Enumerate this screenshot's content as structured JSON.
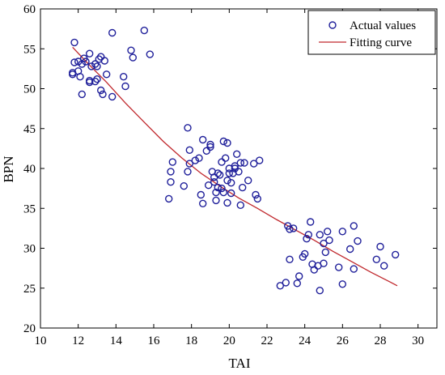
{
  "chart_data": {
    "type": "scatter",
    "xlabel": "TAI",
    "ylabel": "BPN",
    "xlim": [
      10,
      31
    ],
    "ylim": [
      20,
      60
    ],
    "xticks": [
      10,
      12,
      14,
      16,
      18,
      20,
      22,
      24,
      26,
      28,
      30
    ],
    "yticks": [
      20,
      25,
      30,
      35,
      40,
      45,
      50,
      55,
      60
    ],
    "grid": false,
    "legend_position": "top-right",
    "colors": {
      "points": "#1f1f9a",
      "curve": "#c0282d",
      "axis": "#000000"
    },
    "series": [
      {
        "name": "Actual values",
        "kind": "scatter",
        "points": [
          [
            11.7,
            52.0
          ],
          [
            11.7,
            51.8
          ],
          [
            11.8,
            55.8
          ],
          [
            11.8,
            53.3
          ],
          [
            12.0,
            53.4
          ],
          [
            12.0,
            52.2
          ],
          [
            12.1,
            51.5
          ],
          [
            12.2,
            53.1
          ],
          [
            12.2,
            49.3
          ],
          [
            12.3,
            53.8
          ],
          [
            12.4,
            53.4
          ],
          [
            12.6,
            54.4
          ],
          [
            12.6,
            51.0
          ],
          [
            12.6,
            50.8
          ],
          [
            12.7,
            52.8
          ],
          [
            12.9,
            53.1
          ],
          [
            12.9,
            50.9
          ],
          [
            13.0,
            51.2
          ],
          [
            13.0,
            52.8
          ],
          [
            13.1,
            53.7
          ],
          [
            13.2,
            49.8
          ],
          [
            13.2,
            54.0
          ],
          [
            13.3,
            49.3
          ],
          [
            13.4,
            53.5
          ],
          [
            13.5,
            51.8
          ],
          [
            13.8,
            57.0
          ],
          [
            13.8,
            49.0
          ],
          [
            14.4,
            51.5
          ],
          [
            14.5,
            50.3
          ],
          [
            14.8,
            54.8
          ],
          [
            14.9,
            53.9
          ],
          [
            15.5,
            57.3
          ],
          [
            15.8,
            54.3
          ],
          [
            16.8,
            36.2
          ],
          [
            16.9,
            39.6
          ],
          [
            16.9,
            38.3
          ],
          [
            17.0,
            40.8
          ],
          [
            17.6,
            37.8
          ],
          [
            17.8,
            45.1
          ],
          [
            17.8,
            39.6
          ],
          [
            17.9,
            42.3
          ],
          [
            17.9,
            40.6
          ],
          [
            18.2,
            41.0
          ],
          [
            18.4,
            41.3
          ],
          [
            18.5,
            36.7
          ],
          [
            18.6,
            35.6
          ],
          [
            18.6,
            43.6
          ],
          [
            18.8,
            42.2
          ],
          [
            18.9,
            37.9
          ],
          [
            19.0,
            42.7
          ],
          [
            19.0,
            43.0
          ],
          [
            19.1,
            39.6
          ],
          [
            19.2,
            38.3
          ],
          [
            19.2,
            38.9
          ],
          [
            19.3,
            36.0
          ],
          [
            19.3,
            37.0
          ],
          [
            19.4,
            39.4
          ],
          [
            19.4,
            37.6
          ],
          [
            19.5,
            39.2
          ],
          [
            19.6,
            37.5
          ],
          [
            19.6,
            40.8
          ],
          [
            19.7,
            43.4
          ],
          [
            19.7,
            37.0
          ],
          [
            19.8,
            41.3
          ],
          [
            19.9,
            43.2
          ],
          [
            19.9,
            38.5
          ],
          [
            19.9,
            35.7
          ],
          [
            20.0,
            39.4
          ],
          [
            20.0,
            40.0
          ],
          [
            20.1,
            38.2
          ],
          [
            20.1,
            36.9
          ],
          [
            20.2,
            39.4
          ],
          [
            20.3,
            40.0
          ],
          [
            20.3,
            40.3
          ],
          [
            20.4,
            41.8
          ],
          [
            20.5,
            39.6
          ],
          [
            20.6,
            40.7
          ],
          [
            20.6,
            35.4
          ],
          [
            20.7,
            37.6
          ],
          [
            20.8,
            40.7
          ],
          [
            21.0,
            38.5
          ],
          [
            21.3,
            40.6
          ],
          [
            21.4,
            36.7
          ],
          [
            21.5,
            36.2
          ],
          [
            21.6,
            41.0
          ],
          [
            22.7,
            25.3
          ],
          [
            23.0,
            25.7
          ],
          [
            23.1,
            32.8
          ],
          [
            23.2,
            28.6
          ],
          [
            23.2,
            32.4
          ],
          [
            23.4,
            32.5
          ],
          [
            23.6,
            25.6
          ],
          [
            23.7,
            26.5
          ],
          [
            23.9,
            28.9
          ],
          [
            24.0,
            29.3
          ],
          [
            24.1,
            31.2
          ],
          [
            24.2,
            31.7
          ],
          [
            24.3,
            33.3
          ],
          [
            24.4,
            28.0
          ],
          [
            24.5,
            27.3
          ],
          [
            24.7,
            27.8
          ],
          [
            24.8,
            24.7
          ],
          [
            24.8,
            31.7
          ],
          [
            25.0,
            30.6
          ],
          [
            25.0,
            28.1
          ],
          [
            25.1,
            29.5
          ],
          [
            25.2,
            32.1
          ],
          [
            25.3,
            31.0
          ],
          [
            25.8,
            27.6
          ],
          [
            26.0,
            25.5
          ],
          [
            26.0,
            32.1
          ],
          [
            26.4,
            29.9
          ],
          [
            26.6,
            32.8
          ],
          [
            26.6,
            27.4
          ],
          [
            26.8,
            30.9
          ],
          [
            27.8,
            28.6
          ],
          [
            28.0,
            30.2
          ],
          [
            28.2,
            27.8
          ],
          [
            28.8,
            29.2
          ]
        ]
      },
      {
        "name": "Fitting curve",
        "kind": "line",
        "points": [
          [
            11.7,
            55.2
          ],
          [
            12.5,
            53.2
          ],
          [
            13.5,
            50.8
          ],
          [
            14.5,
            48.2
          ],
          [
            15.5,
            45.8
          ],
          [
            16.5,
            43.4
          ],
          [
            17.5,
            41.3
          ],
          [
            18.5,
            39.4
          ],
          [
            19.5,
            37.8
          ],
          [
            20.5,
            36.3
          ],
          [
            21.5,
            35.0
          ],
          [
            22.5,
            33.6
          ],
          [
            23.5,
            32.3
          ],
          [
            24.5,
            31.0
          ],
          [
            25.5,
            29.6
          ],
          [
            26.5,
            28.3
          ],
          [
            27.5,
            27.0
          ],
          [
            28.5,
            25.8
          ],
          [
            28.9,
            25.3
          ]
        ]
      }
    ]
  }
}
